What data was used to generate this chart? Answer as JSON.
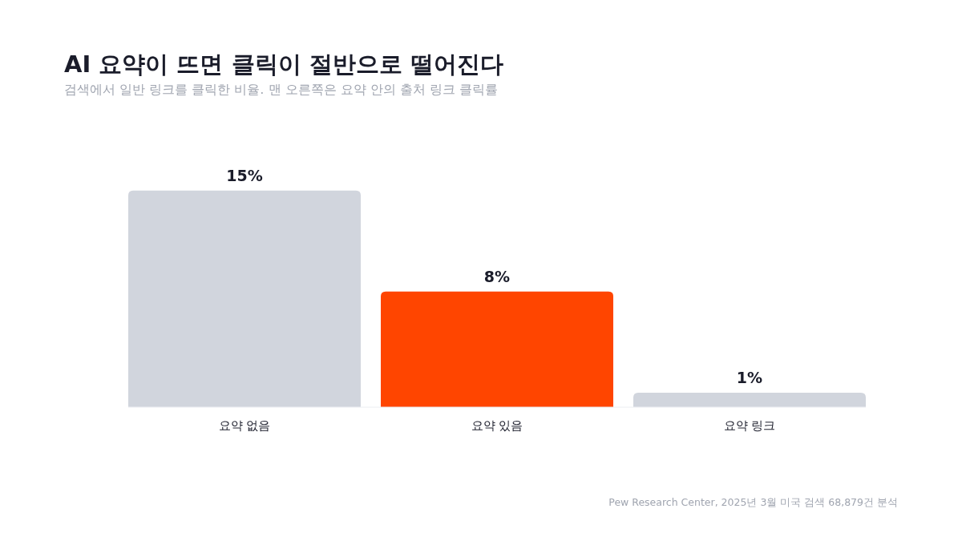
{
  "chart_data": {
    "type": "bar",
    "title": "AI 요약이 뜨면 클릭이 절반으로 떨어진다",
    "subtitle": "검색에서 일반 링크를 클릭한 비율. 맨 오른쪽은 요약 안의 출처 링크 클릭률",
    "categories": [
      "요약 없음",
      "요약 있음",
      "요약 링크"
    ],
    "values": [
      15,
      8,
      1
    ],
    "colors": [
      "#d1d5dd",
      "#ff4500",
      "#d1d5dd"
    ],
    "value_labels": [
      "15%",
      "8%",
      "1%"
    ],
    "annotations": [
      "Pew Research Center, 2025년 3월 미국 검색 68,879건 분석"
    ]
  }
}
